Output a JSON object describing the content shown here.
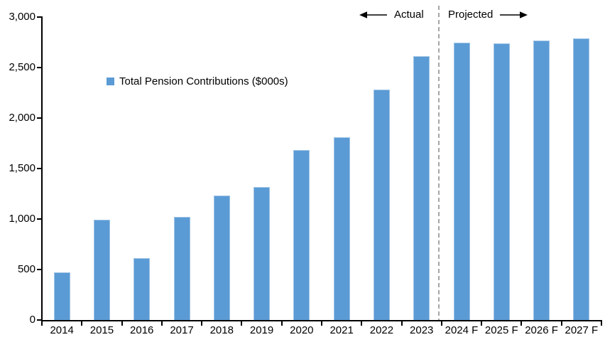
{
  "chart_data": {
    "type": "bar",
    "title": "",
    "legend": "Total Pension Contributions ($000s)",
    "legend_position": "upper-left-inside",
    "categories": [
      "2014",
      "2015",
      "2016",
      "2017",
      "2018",
      "2019",
      "2020",
      "2021",
      "2022",
      "2023",
      "2024 F",
      "2025 F",
      "2026 F",
      "2027 F"
    ],
    "values": [
      470,
      990,
      610,
      1020,
      1230,
      1320,
      1680,
      1810,
      2280,
      2610,
      2750,
      2740,
      2770,
      2790
    ],
    "xlabel": "",
    "ylabel": "",
    "ylim": [
      0,
      3000
    ],
    "ytick_step": 500,
    "ytick_labels": [
      "0",
      "500",
      "1,000",
      "1,500",
      "2,000",
      "2,500",
      "3,000"
    ],
    "grid": false,
    "bar_color": "#5b9bd5",
    "divider_after_category": "2023",
    "divider_color": "#a6a6a6",
    "annotations": {
      "left_label": "Actual",
      "right_label": "Projected"
    }
  }
}
